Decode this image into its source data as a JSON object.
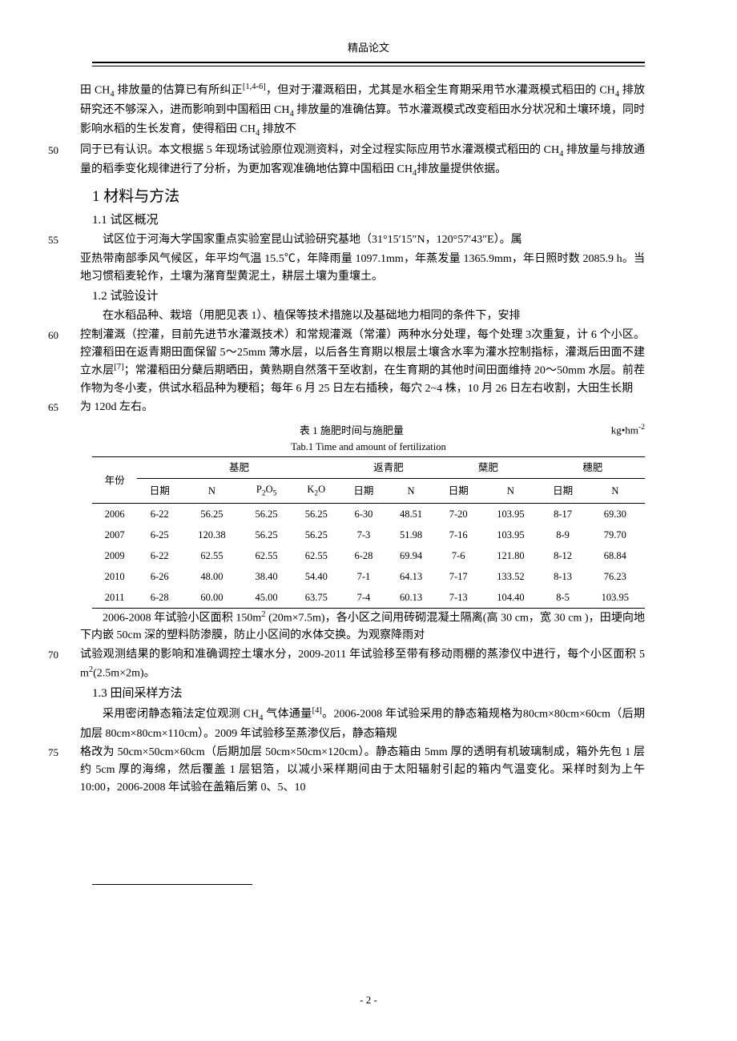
{
  "header": {
    "title": "精品论文"
  },
  "line_numbers": {
    "n50": "50",
    "n55": "55",
    "n60": "60",
    "n65": "65",
    "n70": "70",
    "n75": "75"
  },
  "intro": {
    "p1a": "田 CH",
    "p1b": " 排放量的估算已有所纠正",
    "p1c": "，但对于灌溉稻田，尤其是水稻全生育期采用节水灌溉模式稻田的 CH",
    "p1d": " 排放研究还不够深入，进而影响到中国稻田 CH",
    "p1e": " 排放量的准确估算。节水灌溉模式改变稻田水分状况和土壤环境，同时影响水稻的生长发育，使得稻田 CH",
    "p1f": " 排放不",
    "p2a": "同于已有认识。本文根据 5 年现场试验原位观测资料，对全过程实际应用节水灌溉模式稻田的 CH",
    "p2b": " 排放量与排放通量的稻季变化规律进行了分析，为更加客观准确地估算中国稻田 CH",
    "p2c": "排放量提供依据。",
    "ref_1_4_6": "[1,4-6]",
    "sub4": "4"
  },
  "sections": {
    "s1": "1 材料与方法",
    "s1_1": "1.1 试区概况",
    "s1_2": "1.2 试验设计",
    "s1_3": "1.3 田间采样方法"
  },
  "s1_1_text": {
    "a": "试区位于河海大学国家重点实验室昆山试验研究基地（31°15′15″N，120°57′43″E）。属",
    "b": "亚热带南部季风气候区，年平均气温 15.5℃，年降雨量 1097.1mm，年蒸发量 1365.9mm，年日照时数 2085.9 h。当地习惯稻麦轮作，土壤为潴育型黄泥土，耕层土壤为重壤土。"
  },
  "s1_2_text": {
    "a": "在水稻品种、栽培（用肥见表 1）、植保等技术措施以及基础地力相同的条件下，安排",
    "b1": "控制灌溉（控灌，目前先进节水灌溉技术）和常规灌溉（常灌）两种水分处理，每个处理 3次重复，计 6 个小区。控灌稻田在返青期田面保留 5～25mm 薄水层，以后各生育期以根层土壤含水率为灌水控制指标，灌溉后田面不建立水层",
    "ref7": "[7]",
    "b2": "；常灌稻田分蘖后期晒田，黄熟期自然落干至收割，在生育期的其他时间田面维持 20～50mm 水层。前茬作物为冬小麦，供试水稻品种为粳稻；每年 6 月 25 日左右插秧，每穴 2~4 株，10 月 26 日左右收割，大田生长期",
    "c": "为 120d 左右。"
  },
  "table1": {
    "title_cn": "表 1  施肥时间与施肥量",
    "unit": "kg•hm",
    "unit_exp": "-2",
    "title_en": "Tab.1 Time and amount of fertilization",
    "head": {
      "year": "年份",
      "base": "基肥",
      "regreen": "返青肥",
      "tiller": "蘖肥",
      "panicle": "穗肥",
      "date": "日期",
      "N": "N",
      "P2O5_a": "P",
      "P2O5_b": "2",
      "P2O5_c": "O",
      "P2O5_d": "5",
      "K2O_a": "K",
      "K2O_b": "2",
      "K2O_c": "O"
    },
    "rows": [
      {
        "year": "2006",
        "b_date": "6-22",
        "b_N": "56.25",
        "b_P": "56.25",
        "b_K": "56.25",
        "r_date": "6-30",
        "r_N": "48.51",
        "t_date": "7-20",
        "t_N": "103.95",
        "p_date": "8-17",
        "p_N": "69.30"
      },
      {
        "year": "2007",
        "b_date": "6-25",
        "b_N": "120.38",
        "b_P": "56.25",
        "b_K": "56.25",
        "r_date": "7-3",
        "r_N": "51.98",
        "t_date": "7-16",
        "t_N": "103.95",
        "p_date": "8-9",
        "p_N": "79.70"
      },
      {
        "year": "2009",
        "b_date": "6-22",
        "b_N": "62.55",
        "b_P": "62.55",
        "b_K": "62.55",
        "r_date": "6-28",
        "r_N": "69.94",
        "t_date": "7-6",
        "t_N": "121.80",
        "p_date": "8-12",
        "p_N": "68.84"
      },
      {
        "year": "2010",
        "b_date": "6-26",
        "b_N": "48.00",
        "b_P": "38.40",
        "b_K": "54.40",
        "r_date": "7-1",
        "r_N": "64.13",
        "t_date": "7-17",
        "t_N": "133.52",
        "p_date": "8-13",
        "p_N": "76.23"
      },
      {
        "year": "2011",
        "b_date": "6-28",
        "b_N": "60.00",
        "b_P": "45.00",
        "b_K": "63.75",
        "r_date": "7-4",
        "r_N": "60.13",
        "t_date": "7-13",
        "t_N": "104.40",
        "p_date": "8-5",
        "p_N": "103.95"
      }
    ]
  },
  "post_table": {
    "a1": "2006-2008 年试验小区面积 150m",
    "a2": " (20m×7.5m)，各小区之间用砖砌混凝土隔离(高 30 cm，宽 30 cm )，田埂向地下内嵌 50cm 深的塑料防渗膜，防止小区间的水体交换。为观察降雨对",
    "b1": "试验观测结果的影响和准确调控土壤水分，2009-2011 年试验移至带有移动雨棚的蒸渗仪中进行，每个小区面积 5 m",
    "b2": "(2.5m×2m)。",
    "sup2": "2"
  },
  "s1_3_text": {
    "a1": "采用密闭静态箱法定位观测 CH",
    "a2": " 气体通量",
    "ref4": "[4]",
    "a3": "。2006-2008 年试验采用的静态箱规格为80cm×80cm×60cm（后期加层 80cm×80cm×110cm）。2009 年试验移至蒸渗仪后，静态箱规",
    "b": "格改为 50cm×50cm×60cm（后期加层 50cm×50cm×120cm）。静态箱由 5mm 厚的透明有机玻璃制成，箱外先包 1 层约 5cm 厚的海绵，然后覆盖 1 层铝箔，以减小采样期间由于太阳辐射引起的箱内气温变化。采样时刻为上午 10:00，2006-2008 年试验在盖箱后第 0、5、10",
    "sub4": "4"
  },
  "page_number": "- 2 -"
}
